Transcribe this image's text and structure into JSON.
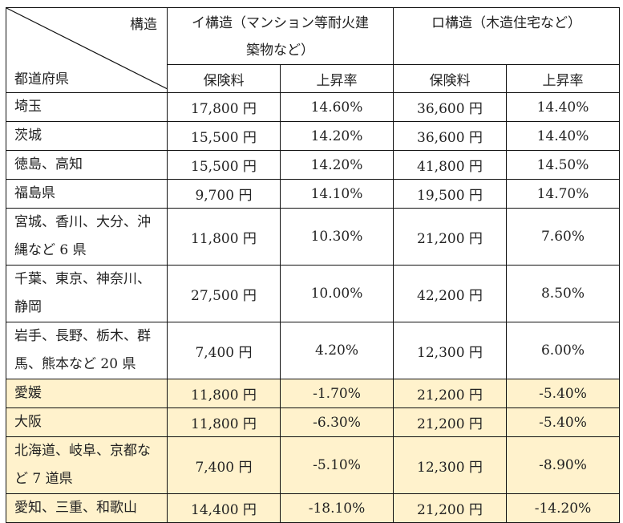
{
  "header": {
    "corner_top": "構造",
    "corner_bottom": "都道府県",
    "group_i": "イ構造（マンション等耐火建築物など）",
    "group_i_line1": "イ構造（マンション等耐火建",
    "group_i_line2": "築物など）",
    "group_ro": "ロ構造（木造住宅など）",
    "sub": [
      "保険料",
      "上昇率",
      "保険料",
      "上昇率"
    ]
  },
  "rows": [
    {
      "pref": [
        "埼玉"
      ],
      "i_fee": "17,800 円",
      "i_rate": "14.60%",
      "ro_fee": "36,600 円",
      "ro_rate": "14.40%",
      "highlight": false
    },
    {
      "pref": [
        "茨城"
      ],
      "i_fee": "15,500 円",
      "i_rate": "14.20%",
      "ro_fee": "36,600 円",
      "ro_rate": "14.40%",
      "highlight": false
    },
    {
      "pref": [
        "徳島、高知"
      ],
      "i_fee": "15,500 円",
      "i_rate": "14.20%",
      "ro_fee": "41,800 円",
      "ro_rate": "14.50%",
      "highlight": false
    },
    {
      "pref": [
        "福島県"
      ],
      "i_fee": "9,700 円",
      "i_rate": "14.10%",
      "ro_fee": "19,500 円",
      "ro_rate": "14.70%",
      "highlight": false
    },
    {
      "pref": [
        "宮城、香川、大分、沖",
        "縄など 6 県"
      ],
      "i_fee": "11,800 円",
      "i_rate": "10.30%",
      "ro_fee": "21,200 円",
      "ro_rate": "7.60%",
      "highlight": false
    },
    {
      "pref": [
        "千葉、東京、神奈川、",
        "静岡"
      ],
      "i_fee": "27,500 円",
      "i_rate": "10.00%",
      "ro_fee": "42,200 円",
      "ro_rate": "8.50%",
      "highlight": false
    },
    {
      "pref": [
        "岩手、長野、栃木、群",
        "馬、熊本など 20 県"
      ],
      "i_fee": "7,400 円",
      "i_rate": "4.20%",
      "ro_fee": "12,300 円",
      "ro_rate": "6.00%",
      "highlight": false
    },
    {
      "pref": [
        "愛媛"
      ],
      "i_fee": "11,800 円",
      "i_rate": "-1.70%",
      "ro_fee": "21,200 円",
      "ro_rate": "-5.40%",
      "highlight": true
    },
    {
      "pref": [
        "大阪"
      ],
      "i_fee": "11,800 円",
      "i_rate": "-6.30%",
      "ro_fee": "21,200 円",
      "ro_rate": "-5.40%",
      "highlight": true
    },
    {
      "pref": [
        "北海道、岐阜、京都な",
        "ど 7 道県"
      ],
      "i_fee": "7,400 円",
      "i_rate": "-5.10%",
      "ro_fee": "12,300 円",
      "ro_rate": "-8.90%",
      "highlight": true
    },
    {
      "pref": [
        "愛知、三重、和歌山"
      ],
      "i_fee": "14,400 円",
      "i_rate": "-18.10%",
      "ro_fee": "21,200 円",
      "ro_rate": "-14.20%",
      "highlight": true
    }
  ],
  "colors": {
    "highlight": "#fff2cc",
    "border": "#111111"
  }
}
